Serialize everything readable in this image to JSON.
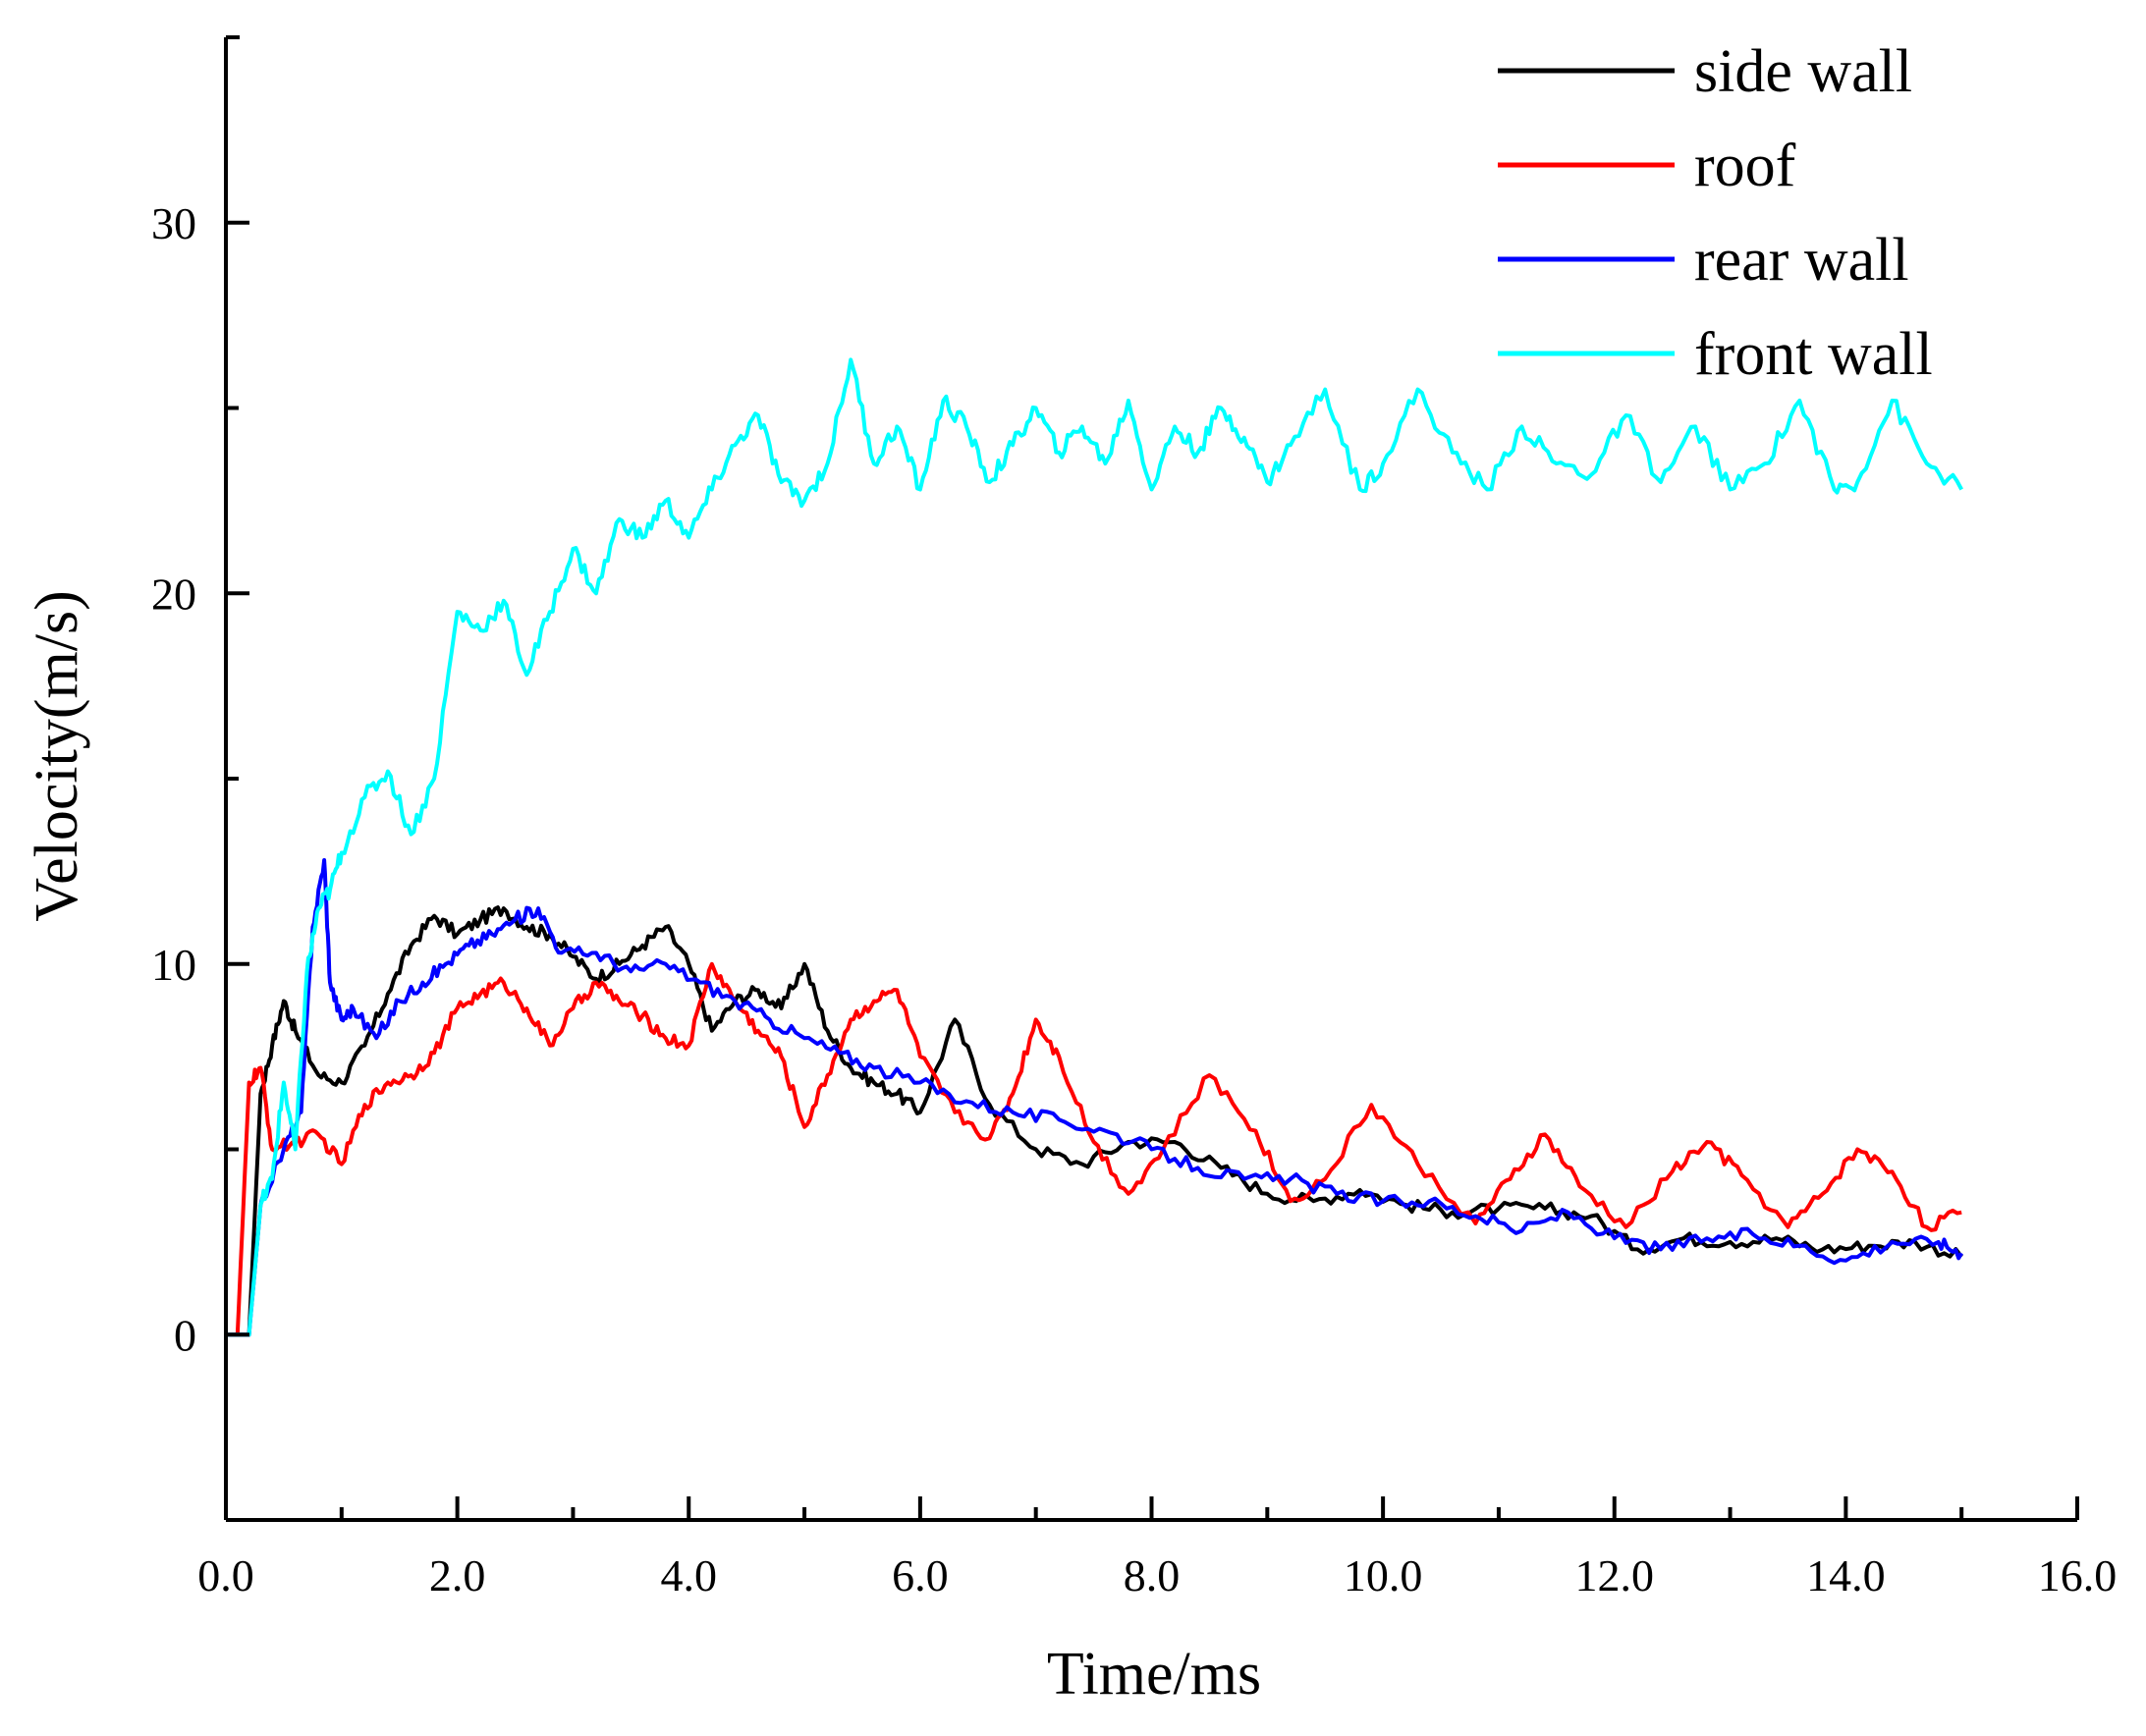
{
  "chart_data": {
    "type": "line",
    "title": "",
    "xlabel": "Time/ms",
    "ylabel": "Velocity(m/s)",
    "xlim": [
      0,
      16
    ],
    "ylim": [
      -5,
      35
    ],
    "x_ticks": [
      0,
      2,
      4,
      6,
      8,
      10,
      12,
      14,
      16
    ],
    "x_tick_labels": [
      "0.0",
      "2.0",
      "4.0",
      "6.0",
      "8.0",
      "10.0",
      "12.0",
      "14.0",
      "16.0"
    ],
    "y_ticks": [
      0,
      10,
      20,
      30
    ],
    "y_tick_labels": [
      "0",
      "10",
      "20",
      "30"
    ],
    "grid": false,
    "legend_position": "top-right",
    "series": [
      {
        "name": "side wall",
        "color": "#000000",
        "x": [
          0,
          0.2,
          0.3,
          0.4,
          0.5,
          0.6,
          0.8,
          1.0,
          1.2,
          1.4,
          1.6,
          1.8,
          2.0,
          2.2,
          2.4,
          2.6,
          2.8,
          3.0,
          3.2,
          3.4,
          3.6,
          3.8,
          4.0,
          4.2,
          4.4,
          4.6,
          4.8,
          5.0,
          5.2,
          5.4,
          5.6,
          5.8,
          6.0,
          6.3,
          6.6,
          7.0,
          7.4,
          7.8,
          8.2,
          8.6,
          9.0,
          9.4,
          9.8,
          10.2,
          10.6,
          11.0,
          11.4,
          11.8,
          12.2,
          12.6,
          13.0,
          13.4,
          13.8,
          14.2,
          14.6,
          15.0
        ],
        "y": [
          0,
          0,
          6.5,
          7.8,
          9.0,
          8.2,
          7.0,
          6.8,
          7.8,
          9.2,
          10.5,
          11.3,
          10.8,
          11.2,
          11.5,
          11.0,
          10.8,
          10.2,
          9.6,
          10.0,
          10.5,
          11.0,
          10.0,
          8.2,
          9.0,
          9.3,
          8.8,
          10.0,
          8.2,
          7.2,
          6.8,
          6.5,
          6.0,
          8.5,
          6.2,
          5.0,
          4.6,
          5.2,
          5.2,
          4.5,
          3.8,
          3.6,
          3.9,
          3.5,
          3.3,
          3.4,
          3.4,
          3.2,
          2.3,
          2.6,
          2.5,
          2.6,
          2.3,
          2.4,
          2.5,
          2.1
        ]
      },
      {
        "name": "roof",
        "color": "#ff0000",
        "x": [
          0,
          0.1,
          0.2,
          0.3,
          0.4,
          0.6,
          0.8,
          1.0,
          1.2,
          1.4,
          1.6,
          1.8,
          2.0,
          2.2,
          2.4,
          2.6,
          2.8,
          3.0,
          3.2,
          3.4,
          3.6,
          3.8,
          4.0,
          4.2,
          4.4,
          4.6,
          4.8,
          5.0,
          5.2,
          5.4,
          5.6,
          5.8,
          6.0,
          6.3,
          6.6,
          6.8,
          7.0,
          7.2,
          7.5,
          7.8,
          8.1,
          8.5,
          8.9,
          9.2,
          9.5,
          9.9,
          10.3,
          10.8,
          11.1,
          11.4,
          11.7,
          12.1,
          12.5,
          12.8,
          13.1,
          13.5,
          13.8,
          14.1,
          14.4,
          14.7,
          15.0
        ],
        "y": [
          0,
          0,
          6.8,
          7.2,
          5.0,
          5.2,
          5.4,
          4.6,
          6.2,
          6.8,
          7.0,
          7.6,
          8.8,
          9.2,
          9.5,
          8.8,
          7.8,
          8.8,
          9.5,
          9.0,
          8.6,
          8.0,
          7.8,
          10.0,
          9.0,
          8.2,
          7.5,
          5.6,
          7.0,
          8.5,
          9.0,
          9.3,
          7.5,
          6.0,
          5.3,
          6.5,
          8.5,
          7.5,
          5.2,
          3.8,
          5.0,
          7.0,
          5.5,
          3.6,
          4.2,
          6.2,
          4.6,
          3.0,
          4.2,
          5.4,
          4.0,
          2.9,
          4.4,
          5.2,
          4.3,
          2.9,
          3.8,
          5.0,
          4.4,
          2.9,
          3.3
        ]
      },
      {
        "name": "rear wall",
        "color": "#0000ff",
        "x": [
          0,
          0.2,
          0.3,
          0.5,
          0.65,
          0.75,
          0.85,
          0.9,
          1.0,
          1.1,
          1.3,
          1.5,
          1.7,
          1.9,
          2.1,
          2.3,
          2.5,
          2.7,
          2.9,
          3.2,
          3.5,
          3.8,
          4.1,
          4.4,
          4.7,
          5.0,
          5.3,
          5.6,
          6.0,
          6.4,
          6.8,
          7.2,
          7.6,
          8.0,
          8.4,
          8.8,
          9.2,
          9.6,
          10.0,
          10.4,
          10.8,
          11.2,
          11.6,
          12.0,
          12.4,
          12.8,
          13.2,
          13.6,
          14.0,
          14.4,
          14.8,
          15.0
        ],
        "y": [
          0,
          0,
          3.5,
          5.0,
          6.0,
          11.0,
          12.8,
          9.5,
          8.5,
          8.8,
          8.0,
          9.0,
          9.5,
          10.0,
          10.5,
          10.8,
          11.2,
          11.5,
          10.3,
          10.3,
          9.8,
          10.0,
          9.5,
          9.0,
          8.5,
          8.0,
          7.6,
          7.2,
          6.8,
          6.3,
          6.0,
          5.8,
          5.5,
          5.0,
          4.5,
          4.2,
          4.2,
          3.8,
          3.6,
          3.6,
          3.2,
          2.8,
          3.3,
          2.6,
          2.3,
          2.6,
          2.7,
          2.4,
          2.0,
          2.5,
          2.5,
          2.2
        ]
      },
      {
        "name": "front wall",
        "color": "#00ffff",
        "x": [
          0,
          0.2,
          0.3,
          0.4,
          0.5,
          0.6,
          0.7,
          0.8,
          0.9,
          1.0,
          1.2,
          1.4,
          1.6,
          1.8,
          2.0,
          2.2,
          2.4,
          2.6,
          2.8,
          3.0,
          3.2,
          3.4,
          3.6,
          3.8,
          4.0,
          4.2,
          4.4,
          4.6,
          4.8,
          5.0,
          5.2,
          5.4,
          5.6,
          5.8,
          6.0,
          6.2,
          6.4,
          6.6,
          6.8,
          7.0,
          7.2,
          7.4,
          7.6,
          7.8,
          8.0,
          8.2,
          8.4,
          8.6,
          8.8,
          9.0,
          9.2,
          9.5,
          9.8,
          10.0,
          10.3,
          10.6,
          10.9,
          11.2,
          11.5,
          11.8,
          12.1,
          12.4,
          12.7,
          13.0,
          13.3,
          13.6,
          13.9,
          14.1,
          14.4,
          14.7,
          15.0
        ],
        "y": [
          0,
          0,
          3.5,
          4.2,
          6.8,
          5.0,
          9.8,
          11.5,
          12.0,
          13.0,
          14.5,
          15.2,
          13.5,
          15.0,
          19.5,
          19.0,
          19.8,
          17.8,
          19.5,
          21.2,
          20.0,
          22.0,
          21.5,
          22.5,
          21.5,
          22.8,
          24.0,
          24.8,
          23.0,
          22.5,
          23.5,
          26.3,
          23.5,
          24.5,
          22.8,
          25.2,
          24.5,
          23.0,
          24.0,
          25.0,
          23.8,
          24.5,
          23.5,
          25.2,
          22.8,
          24.5,
          23.8,
          25.0,
          24.2,
          23.0,
          24.0,
          25.5,
          22.8,
          23.5,
          25.5,
          23.8,
          22.8,
          24.5,
          23.5,
          23.2,
          24.8,
          23.0,
          24.5,
          22.8,
          23.5,
          25.2,
          22.8,
          23.0,
          25.2,
          23.5,
          22.8
        ]
      }
    ]
  }
}
